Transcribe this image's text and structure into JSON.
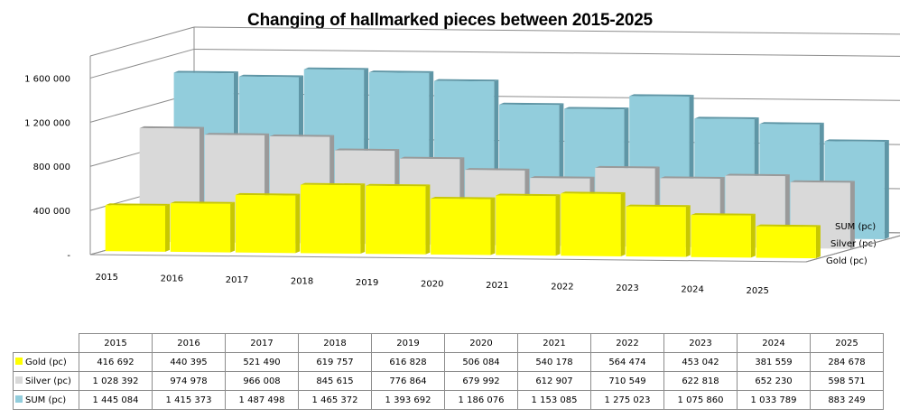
{
  "chart_data": {
    "type": "bar",
    "subtype": "3d-column-stacked-depth",
    "title": "Changing of hallmarked pieces between 2015-2025",
    "xlabel": "",
    "ylabel": "",
    "categories": [
      "2015",
      "2016",
      "2017",
      "2018",
      "2019",
      "2020",
      "2021",
      "2022",
      "2023",
      "2024",
      "2025"
    ],
    "series": [
      {
        "name": "Gold (pc)",
        "color": "#ffff00",
        "values": [
          416692,
          440395,
          521490,
          619757,
          616828,
          506084,
          540178,
          564474,
          453042,
          381559,
          284678
        ],
        "display": [
          "416 692",
          "440 395",
          "521 490",
          "619 757",
          "616 828",
          "506 084",
          "540 178",
          "564 474",
          "453 042",
          "381 559",
          "284 678"
        ]
      },
      {
        "name": "Silver (pc)",
        "color": "#d9d9d9",
        "values": [
          1028392,
          974978,
          966008,
          845615,
          776864,
          679992,
          612907,
          710549,
          622818,
          652230,
          598571
        ],
        "display": [
          "1 028 392",
          "974 978",
          "966 008",
          "845 615",
          "776 864",
          "679 992",
          "612 907",
          "710 549",
          "622 818",
          "652 230",
          "598 571"
        ]
      },
      {
        "name": "SUM (pc)",
        "color": "#92cddc",
        "values": [
          1445084,
          1415373,
          1487498,
          1465372,
          1393692,
          1186076,
          1153085,
          1275023,
          1075860,
          1033789,
          883249
        ],
        "display": [
          "1 445 084",
          "1 415 373",
          "1 487 498",
          "1 465 372",
          "1 393 692",
          "1 186 076",
          "1 153 085",
          "1 275 023",
          "1 075 860",
          "1 033 789",
          "883 249"
        ]
      }
    ],
    "yticks": [
      0,
      400000,
      800000,
      1200000,
      1600000
    ],
    "ytick_labels": [
      "-",
      "400 000",
      "800 000",
      "1 200 000",
      "1 600 000"
    ],
    "ylim": [
      0,
      1800000
    ],
    "grid": true,
    "legend": "data-table-below",
    "depth_axis_labels": [
      "SUM (pc)",
      "Silver (pc)",
      "Gold (pc)"
    ]
  }
}
